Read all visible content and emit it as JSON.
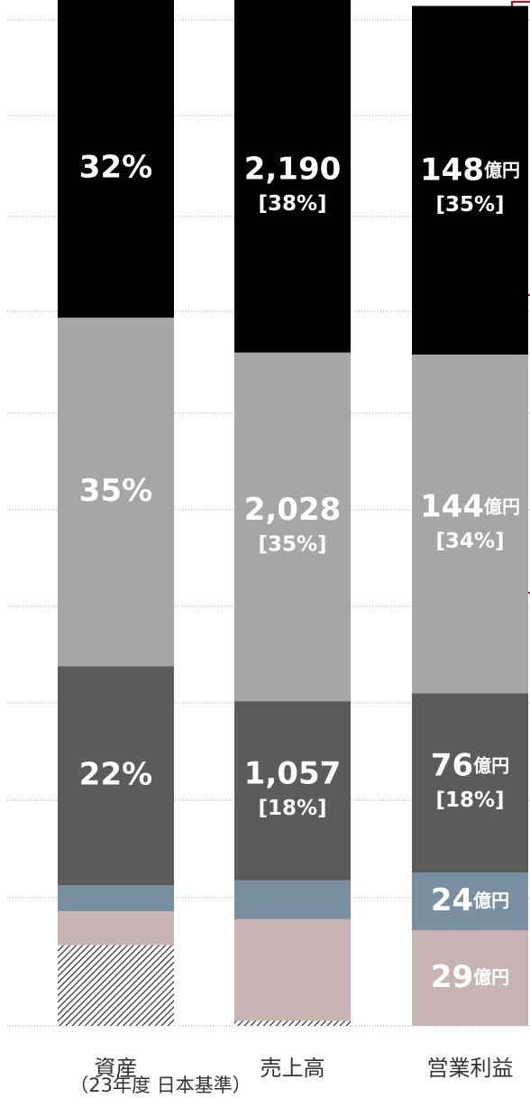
{
  "chart_data": {
    "type": "stacked-bar",
    "categories": [
      "資産",
      "売上高",
      "営業利益"
    ],
    "note": "（23年度 日本基準）",
    "ylim": [
      0,
      102
    ],
    "series": [
      {
        "color": "hatch",
        "values": [
          8.1,
          0.5,
          0
        ]
      },
      {
        "color": "#c9b4b4",
        "values": [
          3.4,
          10.2,
          9.6
        ],
        "amount_labels": [
          null,
          null,
          "29"
        ],
        "amount_units": [
          null,
          null,
          "億円"
        ]
      },
      {
        "color": "#7a8fa2",
        "values": [
          2.6,
          3.9,
          5.8
        ],
        "amount_labels": [
          null,
          null,
          "24"
        ],
        "amount_units": [
          null,
          null,
          "億円"
        ]
      },
      {
        "color": "#5b5b5b",
        "values": [
          22,
          18,
          18
        ],
        "value_labels": [
          "22%",
          "[18%]",
          "[18%]"
        ],
        "amount_labels": [
          null,
          "1,057",
          "76"
        ],
        "amount_units": [
          null,
          null,
          "億円"
        ]
      },
      {
        "color": "#a6a6a6",
        "values": [
          35,
          35,
          34
        ],
        "value_labels": [
          "35%",
          "[35%]",
          "[34%]"
        ],
        "amount_labels": [
          null,
          "2,028",
          "144"
        ],
        "amount_units": [
          null,
          null,
          "億円"
        ]
      },
      {
        "color": "#000000",
        "values": [
          32,
          38,
          35
        ],
        "value_labels": [
          "32%",
          "[38%]",
          "[35%]"
        ],
        "amount_labels": [
          null,
          "2,190",
          "148"
        ],
        "amount_units": [
          null,
          null,
          "億円"
        ]
      }
    ]
  }
}
